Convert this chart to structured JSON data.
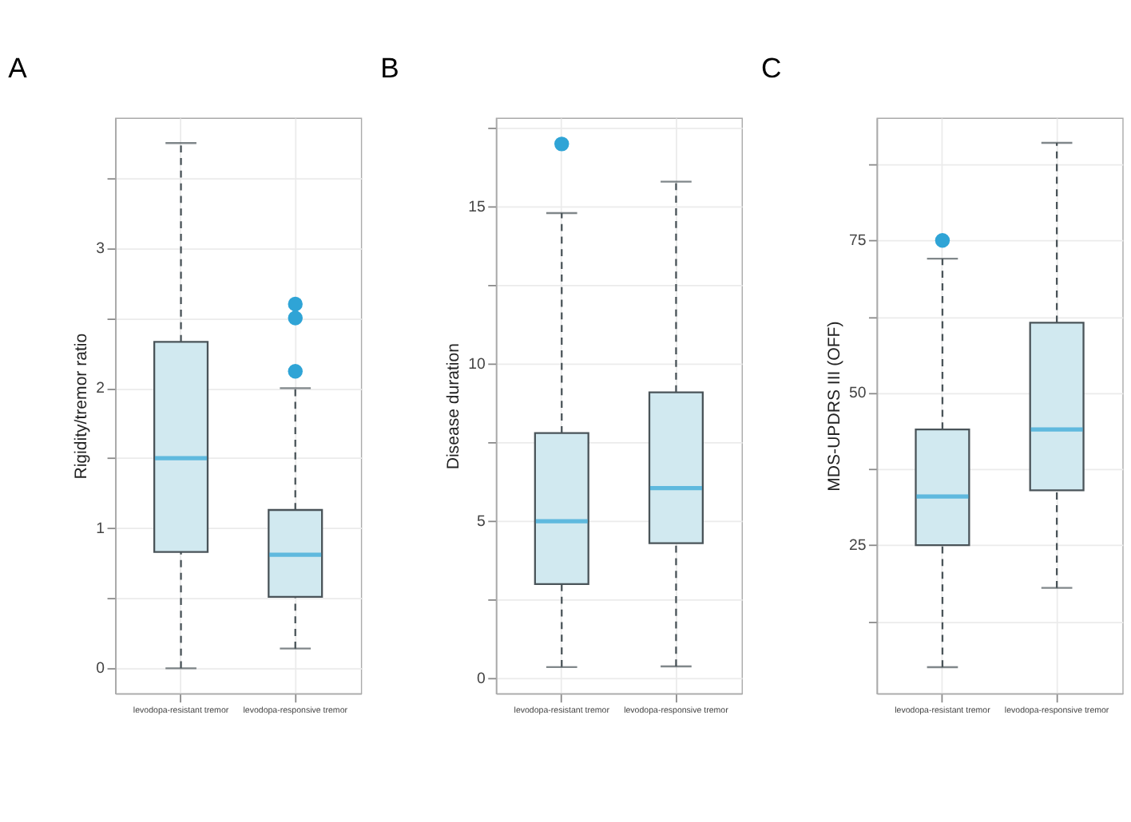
{
  "chart_data": [
    {
      "type": "box",
      "title": "A",
      "ylabel": "Rigidity/tremor ratio",
      "categories": [
        "levodopa-resistant tremor",
        "levodopa-responsive tremor"
      ],
      "ylim": [
        -0.18,
        3.93
      ],
      "yticks": [
        0,
        {
          "value": 0.5,
          "label": null
        },
        1,
        {
          "value": 1.5,
          "label": null
        },
        2,
        {
          "value": 2.5,
          "label": null
        },
        3,
        {
          "value": 3.5,
          "label": null
        }
      ],
      "grid": true,
      "series": [
        {
          "color": "#d1e9f0",
          "boxes": [
            {
              "low": 0,
              "q1": 0.83,
              "median": 1.5,
              "q3": 2.33,
              "high": 3.75
            },
            {
              "low": 0.14,
              "q1": 0.51,
              "median": 0.81,
              "q3": 1.13,
              "high": 2.0,
              "outliers": [
                2.6,
                2.5,
                2.12
              ]
            }
          ]
        }
      ]
    },
    {
      "type": "box",
      "title": "B",
      "ylabel": "Disease duration",
      "categories": [
        "levodopa-resistant tremor",
        "levodopa-responsive tremor"
      ],
      "ylim": [
        -0.48,
        17.83
      ],
      "yticks": [
        0,
        {
          "value": 2.5,
          "label": null
        },
        5,
        {
          "value": 7.5,
          "label": null
        },
        10,
        {
          "value": 12.5,
          "label": null
        },
        15,
        {
          "value": 17.5,
          "label": null
        }
      ],
      "grid": true,
      "series": [
        {
          "color": "#d1e9f0",
          "boxes": [
            {
              "low": 0.36,
              "q1": 3.0,
              "median": 5.0,
              "q3": 7.8,
              "high": 14.8,
              "outliers": [
                17.0
              ]
            },
            {
              "low": 0.38,
              "q1": 4.3,
              "median": 6.05,
              "q3": 9.1,
              "high": 15.8
            }
          ]
        }
      ]
    },
    {
      "type": "box",
      "title": "C",
      "ylabel": "MDS-UPDRS III (OFF)",
      "categories": [
        "levodopa-resistant tremor",
        "levodopa-responsive tremor"
      ],
      "ylim": [
        0.7,
        95.1
      ],
      "yticks": [
        {
          "value": 12.5,
          "label": null
        },
        25,
        {
          "value": 37.5,
          "label": null
        },
        50,
        {
          "value": 62.5,
          "label": null
        },
        75,
        {
          "value": 87.5,
          "label": null
        }
      ],
      "grid": true,
      "series": [
        {
          "color": "#d1e9f0",
          "boxes": [
            {
              "low": 5,
              "q1": 25,
              "median": 33,
              "q3": 44,
              "high": 72,
              "outliers": [
                75
              ]
            },
            {
              "low": 18,
              "q1": 34,
              "median": 44,
              "q3": 61.5,
              "high": 91
            }
          ]
        }
      ]
    }
  ]
}
